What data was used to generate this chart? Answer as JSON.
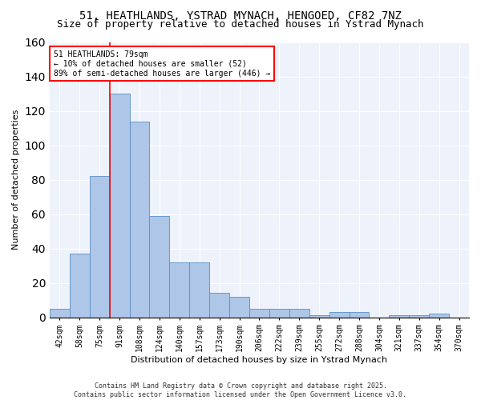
{
  "title": "51, HEATHLANDS, YSTRAD MYNACH, HENGOED, CF82 7NZ",
  "subtitle": "Size of property relative to detached houses in Ystrad Mynach",
  "xlabel": "Distribution of detached houses by size in Ystrad Mynach",
  "ylabel": "Number of detached properties",
  "categories": [
    "42sqm",
    "58sqm",
    "75sqm",
    "91sqm",
    "108sqm",
    "124sqm",
    "140sqm",
    "157sqm",
    "173sqm",
    "190sqm",
    "206sqm",
    "222sqm",
    "239sqm",
    "255sqm",
    "272sqm",
    "288sqm",
    "304sqm",
    "321sqm",
    "337sqm",
    "354sqm",
    "370sqm"
  ],
  "values": [
    5,
    37,
    82,
    130,
    114,
    59,
    32,
    32,
    14,
    12,
    5,
    5,
    5,
    1,
    3,
    3,
    0,
    1,
    1,
    2,
    0
  ],
  "bar_color": "#aec6e8",
  "bar_edge_color": "#5a8fc2",
  "vline_color": "red",
  "vline_pos": 2.5,
  "annotation_text": "51 HEATHLANDS: 79sqm\n← 10% of detached houses are smaller (52)\n89% of semi-detached houses are larger (446) →",
  "annotation_box_color": "white",
  "annotation_box_edge_color": "red",
  "ylim": [
    0,
    160
  ],
  "yticks": [
    0,
    20,
    40,
    60,
    80,
    100,
    120,
    140,
    160
  ],
  "footer": "Contains HM Land Registry data © Crown copyright and database right 2025.\nContains public sector information licensed under the Open Government Licence v3.0.",
  "bg_color": "#eef2fb",
  "title_fontsize": 10,
  "subtitle_fontsize": 9,
  "xlabel_fontsize": 8,
  "ylabel_fontsize": 8,
  "tick_fontsize": 7,
  "annotation_fontsize": 7,
  "footer_fontsize": 6
}
